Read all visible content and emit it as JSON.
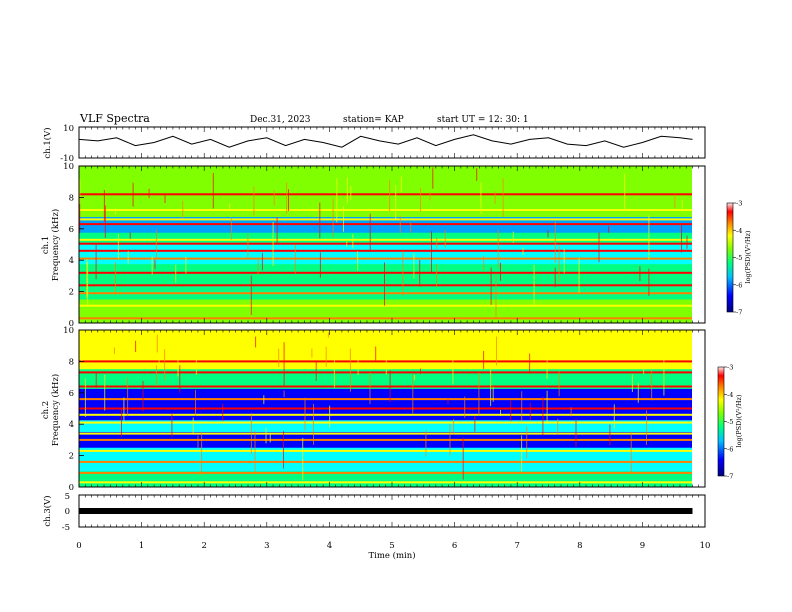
{
  "header": {
    "title": "VLF Spectra",
    "date": "Dec.31, 2023",
    "station": "station= KAP",
    "start": "start  UT =   12: 30: 1"
  },
  "chart_data": [
    {
      "type": "line",
      "panel": "ch1-waveform",
      "ylabel": "ch.1(V)",
      "ylim": [
        -10,
        10
      ],
      "yticks": [
        "10",
        "-10"
      ],
      "xlim": [
        0,
        10
      ],
      "series": [
        {
          "x": [
            0,
            0.3,
            0.6,
            0.9,
            1.2,
            1.5,
            1.8,
            2.1,
            2.4,
            2.7,
            3.0,
            3.3,
            3.6,
            3.9,
            4.2,
            4.5,
            4.8,
            5.1,
            5.4,
            5.7,
            6.0,
            6.3,
            6.6,
            6.9,
            7.2,
            7.5,
            7.8,
            8.1,
            8.4,
            8.7,
            9.0,
            9.3,
            9.6,
            9.8
          ],
          "values": [
            2,
            1,
            3,
            -2,
            0,
            4,
            -1,
            2,
            -3,
            1,
            3,
            -2,
            2,
            0,
            -3,
            4,
            1,
            -1,
            3,
            -2,
            2,
            5,
            1,
            -1,
            2,
            3,
            -1,
            -2,
            1,
            -3,
            0,
            4,
            3,
            2
          ]
        }
      ]
    },
    {
      "type": "heatmap",
      "panel": "ch1-spectrogram",
      "ylabel": "ch.1\nFrequency (kHz)",
      "ylim": [
        0,
        10
      ],
      "yticks": [
        "0",
        "2",
        "4",
        "6",
        "8",
        "10"
      ],
      "xlim": [
        0,
        10
      ],
      "colorbar": {
        "label": "log(PSD)(V²/Hz)",
        "range": [
          -7,
          -3
        ],
        "ticks": [
          "-3",
          "-4",
          "-5",
          "-6",
          "-7"
        ]
      }
    },
    {
      "type": "heatmap",
      "panel": "ch2-spectrogram",
      "ylabel": "ch.2\nFrequency (kHz)",
      "ylim": [
        0,
        10
      ],
      "yticks": [
        "0",
        "2",
        "4",
        "6",
        "8",
        "10"
      ],
      "xlim": [
        0,
        10
      ],
      "colorbar": {
        "label": "log(PSD)(V²/Hz)",
        "range": [
          -7,
          -3
        ],
        "ticks": [
          "-3",
          "-4",
          "-5",
          "-6",
          "-7"
        ]
      }
    },
    {
      "type": "line",
      "panel": "ch3-waveform",
      "ylabel": "ch.3(V)",
      "ylim": [
        -5,
        5
      ],
      "yticks": [
        "5",
        "0",
        "-5"
      ],
      "xlim": [
        0,
        10
      ],
      "xlabel": "Time (min)",
      "xticks": [
        "0",
        "1",
        "2",
        "3",
        "4",
        "5",
        "6",
        "7",
        "8",
        "9",
        "10"
      ],
      "series": [
        {
          "x": [
            0,
            10
          ],
          "values": [
            0,
            0
          ]
        }
      ]
    }
  ],
  "colors": {
    "line": "#000000",
    "spectral_scale": [
      "#0000a0",
      "#0000ff",
      "#00a0ff",
      "#00ffff",
      "#00ff80",
      "#80ff00",
      "#ffff00",
      "#ff8000",
      "#ff0000",
      "#ffe0e0"
    ]
  }
}
